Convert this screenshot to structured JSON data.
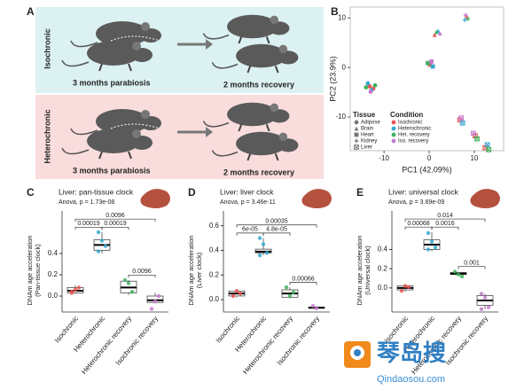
{
  "panel_a": {
    "label": "A",
    "rows": [
      {
        "condition": "Isochronic",
        "left": "3 months parabiosis",
        "right": "2 months recovery"
      },
      {
        "condition": "Heterochronic",
        "left": "3 months parabiosis",
        "right": "2 months recovery"
      }
    ]
  },
  "chart_data": [
    {
      "type": "scatter",
      "label": "B",
      "xlabel": "PC1 (42.09%)",
      "ylabel": "PC2 (23.9%)",
      "xlim": [
        -17.5,
        16.5
      ],
      "ylim": [
        -16.8,
        12.2
      ],
      "xticks": [
        -10,
        0,
        10
      ],
      "yticks": [
        -10,
        0,
        10
      ],
      "tissue_title": "Tissue",
      "condition_title": "Condition",
      "tissues": [
        {
          "name": "Adipose",
          "shape": "circle"
        },
        {
          "name": "Brain",
          "shape": "triangle"
        },
        {
          "name": "Heart",
          "shape": "square"
        },
        {
          "name": "Kidney",
          "shape": "plus"
        },
        {
          "name": "Liver",
          "shape": "boxed"
        }
      ],
      "series": [
        {
          "name": "Isochronic",
          "color": "#e8544e",
          "x": [
            -13.2,
            -12.4,
            0.2,
            1.2,
            8.3,
            6.8,
            10.2,
            12.4
          ],
          "y": [
            -3.8,
            -4.3,
            0.6,
            6.6,
            10.2,
            -10.6,
            -13.8,
            -16.2
          ],
          "tissue": [
            "Adipose",
            "Adipose",
            "Heart",
            "Brain",
            "Kidney",
            "Liver",
            "Liver",
            "Liver"
          ]
        },
        {
          "name": "Heterochronic",
          "color": "#35a7cf",
          "x": [
            -12.8,
            -13.6,
            0.8,
            2.0,
            7.9,
            7.4,
            12.9
          ],
          "y": [
            -4.6,
            -3.2,
            0.2,
            7.4,
            9.6,
            -11.2,
            -15.6
          ],
          "tissue": [
            "Adipose",
            "Adipose",
            "Heart",
            "Brain",
            "Kidney",
            "Liver",
            "Liver"
          ]
        },
        {
          "name": "Het. recovery",
          "color": "#3fb05e",
          "x": [
            -14.0,
            -12.0,
            -0.3,
            1.6,
            8.6,
            10.6,
            13.2
          ],
          "y": [
            -4.0,
            -3.6,
            0.9,
            7.2,
            9.8,
            -14.4,
            -16.6
          ],
          "tissue": [
            "Adipose",
            "Adipose",
            "Heart",
            "Brain",
            "Kidney",
            "Liver",
            "Liver"
          ]
        },
        {
          "name": "Iso. recovery",
          "color": "#c57ad0",
          "x": [
            -13.0,
            0.5,
            2.4,
            8.1,
            7.1,
            9.8
          ],
          "y": [
            -4.9,
            1.2,
            6.9,
            10.6,
            -10.2,
            -13.3
          ],
          "tissue": [
            "Adipose",
            "Heart",
            "Brain",
            "Kidney",
            "Liver",
            "Liver"
          ]
        }
      ]
    },
    {
      "type": "box",
      "label": "C",
      "title": "Liver: pan-tissue clock",
      "subtitle": "Anova, p = 1.73e-08",
      "ylabel": [
        "DNAm age acceleration",
        "(Pan-tissue clock)"
      ],
      "categories": [
        "Isochronic",
        "Heterochronic",
        "Heterochronic recovery",
        "Isochronic recovery"
      ],
      "colors": [
        "#e8544e",
        "#35a7cf",
        "#3fb05e",
        "#c57ad0"
      ],
      "ylim": [
        -0.15,
        0.8
      ],
      "yticks": [
        {
          "value": 0,
          "label": "0.0"
        },
        0.2,
        0.4
      ],
      "groups": [
        {
          "box": [
            0.03,
            0.05,
            0.08
          ],
          "whiskers": [
            0.02,
            0.1
          ],
          "points": [
            0.04,
            0.06,
            0.08,
            0.03
          ]
        },
        {
          "box": [
            0.43,
            0.48,
            0.53
          ],
          "whiskers": [
            0.4,
            0.6
          ],
          "points": [
            0.6,
            0.52,
            0.47,
            0.42
          ]
        },
        {
          "box": [
            0.03,
            0.08,
            0.14
          ],
          "whiskers": [
            0.01,
            0.15
          ],
          "points": [
            0.15,
            0.12,
            0.04
          ]
        },
        {
          "box": [
            -0.06,
            -0.04,
            0.0
          ],
          "whiskers": [
            -0.07,
            0.03
          ],
          "points": [
            -0.12,
            -0.05,
            0.0
          ]
        }
      ],
      "comparisons": [
        {
          "pair": [
            "Isochronic",
            "Heterochronic"
          ],
          "label": "0.00019"
        },
        {
          "pair": [
            "Heterochronic",
            "Heterochronic recovery"
          ],
          "label": "0.00019"
        },
        {
          "pair": [
            "Heterochronic recovery",
            "Isochronic recovery"
          ],
          "label": "0.0096"
        },
        {
          "pair": [
            "Isochronic",
            "Isochronic recovery"
          ],
          "label": "0.0096"
        }
      ]
    },
    {
      "type": "box",
      "label": "D",
      "title": "Liver: liver clock",
      "subtitle": "Anova, p = 3.46e-11",
      "ylabel": [
        "DNAm age acceleration",
        "(Liver clock)"
      ],
      "categories": [
        "Isochronic",
        "Heterochronic",
        "Heterochronic recovery",
        "Isochronic recovery"
      ],
      "colors": [
        "#e8544e",
        "#35a7cf",
        "#3fb05e",
        "#c57ad0"
      ],
      "ylim": [
        -0.1,
        0.72
      ],
      "yticks": [
        {
          "value": 0,
          "label": "0.0"
        },
        0.2,
        0.4,
        0.6
      ],
      "groups": [
        {
          "box": [
            0.03,
            0.05,
            0.07
          ],
          "whiskers": [
            0.02,
            0.08
          ],
          "points": [
            0.03,
            0.07,
            0.05
          ]
        },
        {
          "box": [
            0.38,
            0.39,
            0.41
          ],
          "whiskers": [
            0.36,
            0.5
          ],
          "points": [
            0.5,
            0.45,
            0.38,
            0.36
          ]
        },
        {
          "box": [
            0.02,
            0.05,
            0.08
          ],
          "whiskers": [
            0.01,
            0.1
          ],
          "points": [
            0.1,
            0.03,
            0.06
          ]
        },
        {
          "box": [
            -0.07,
            -0.065,
            -0.06
          ],
          "whiskers": [
            -0.07,
            -0.05
          ],
          "points": [
            -0.05,
            -0.07
          ]
        }
      ],
      "comparisons": [
        {
          "pair": [
            "Isochronic",
            "Heterochronic"
          ],
          "label": "6e-05"
        },
        {
          "pair": [
            "Heterochronic",
            "Heterochronic recovery"
          ],
          "label": "4.8e-05"
        },
        {
          "pair": [
            "Heterochronic recovery",
            "Isochronic recovery"
          ],
          "label": "0.00066"
        },
        {
          "pair": [
            "Isochronic",
            "Isochronic recovery"
          ],
          "label": "0.00035"
        }
      ]
    },
    {
      "type": "box",
      "label": "E",
      "title": "Liver: universal clock",
      "subtitle": "Anova, p = 3.69e-09",
      "ylabel": [
        "DNAm age acceleration",
        "(Universal clock)"
      ],
      "categories": [
        "Isochronic",
        "Heterochronic",
        "Heterochronic recovery",
        "Isochronic recovery"
      ],
      "colors": [
        "#e8544e",
        "#35a7cf",
        "#3fb05e",
        "#c57ad0"
      ],
      "ylim": [
        -0.25,
        0.8
      ],
      "yticks": [
        {
          "value": 0,
          "label": "0.0"
        },
        0.2,
        0.4
      ],
      "groups": [
        {
          "box": [
            -0.02,
            0.0,
            0.02
          ],
          "whiskers": [
            -0.04,
            0.04
          ],
          "points": [
            -0.03,
            0.02,
            0.01
          ]
        },
        {
          "box": [
            0.4,
            0.45,
            0.5
          ],
          "whiskers": [
            0.38,
            0.58
          ],
          "points": [
            0.57,
            0.48,
            0.42,
            0.4
          ]
        },
        {
          "box": [
            0.14,
            0.15,
            0.16
          ],
          "whiskers": [
            0.13,
            0.17
          ],
          "points": [
            0.17,
            0.14,
            0.12
          ]
        },
        {
          "box": [
            -0.18,
            -0.13,
            -0.08
          ],
          "whiskers": [
            -0.22,
            -0.06
          ],
          "points": [
            -0.06,
            -0.1,
            -0.2,
            -0.22
          ]
        }
      ],
      "comparisons": [
        {
          "pair": [
            "Isochronic",
            "Heterochronic"
          ],
          "label": "0.00068"
        },
        {
          "pair": [
            "Heterochronic",
            "Heterochronic recovery"
          ],
          "label": "0.0016"
        },
        {
          "pair": [
            "Heterochronic recovery",
            "Isochronic recovery"
          ],
          "label": "0.001"
        },
        {
          "pair": [
            "Isochronic",
            "Isochronic recovery"
          ],
          "label": "0.014"
        }
      ]
    }
  ],
  "watermark": {
    "name": "琴岛搜",
    "url": "Qindaosou.com"
  }
}
